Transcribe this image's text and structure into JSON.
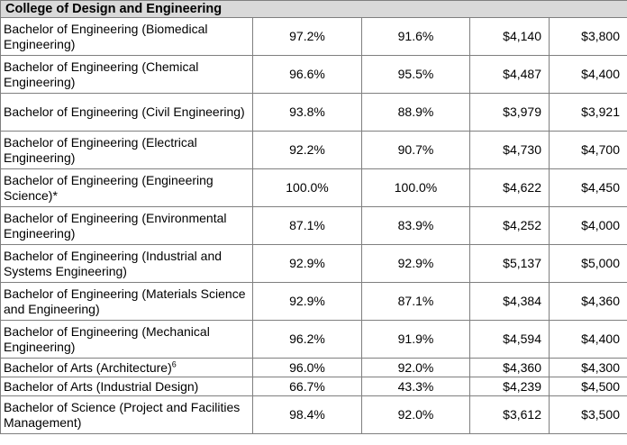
{
  "section_title": "College of Design and Engineering",
  "rows": [
    {
      "program": "Bachelor of Engineering (Biomedical Engineering)",
      "rate1": "97.2%",
      "rate2": "91.6%",
      "salary1": "$4,140",
      "salary2": "$3,800"
    },
    {
      "program": "Bachelor of Engineering (Chemical Engineering)",
      "rate1": "96.6%",
      "rate2": "95.5%",
      "salary1": "$4,487",
      "salary2": "$4,400"
    },
    {
      "program": "Bachelor of Engineering (Civil Engineering)",
      "rate1": "93.8%",
      "rate2": "88.9%",
      "salary1": "$3,979",
      "salary2": "$3,921"
    },
    {
      "program": "Bachelor of Engineering (Electrical Engineering)",
      "rate1": "92.2%",
      "rate2": "90.7%",
      "salary1": "$4,730",
      "salary2": "$4,700"
    },
    {
      "program": "Bachelor of Engineering (Engineering Science)*",
      "rate1": "100.0%",
      "rate2": "100.0%",
      "salary1": "$4,622",
      "salary2": "$4,450"
    },
    {
      "program": "Bachelor of Engineering (Environmental Engineering)",
      "rate1": "87.1%",
      "rate2": "83.9%",
      "salary1": "$4,252",
      "salary2": "$4,000"
    },
    {
      "program": "Bachelor of Engineering (Industrial and Systems Engineering)",
      "rate1": "92.9%",
      "rate2": "92.9%",
      "salary1": "$5,137",
      "salary2": "$5,000"
    },
    {
      "program": "Bachelor of Engineering (Materials Science and Engineering)",
      "rate1": "92.9%",
      "rate2": "87.1%",
      "salary1": "$4,384",
      "salary2": "$4,360"
    },
    {
      "program": "Bachelor of Engineering (Mechanical Engineering)",
      "rate1": "96.2%",
      "rate2": "91.9%",
      "salary1": "$4,594",
      "salary2": "$4,400"
    },
    {
      "program": "Bachelor of Arts (Architecture)",
      "footnote": "6",
      "rate1": "96.0%",
      "rate2": "92.0%",
      "salary1": "$4,360",
      "salary2": "$4,300"
    },
    {
      "program": "Bachelor of Arts (Industrial Design)",
      "rate1": "66.7%",
      "rate2": "43.3%",
      "salary1": "$4,239",
      "salary2": "$4,500"
    },
    {
      "program": "Bachelor of Science (Project and Facilities Management)",
      "rate1": "98.4%",
      "rate2": "92.0%",
      "salary1": "$3,612",
      "salary2": "$3,500"
    }
  ]
}
